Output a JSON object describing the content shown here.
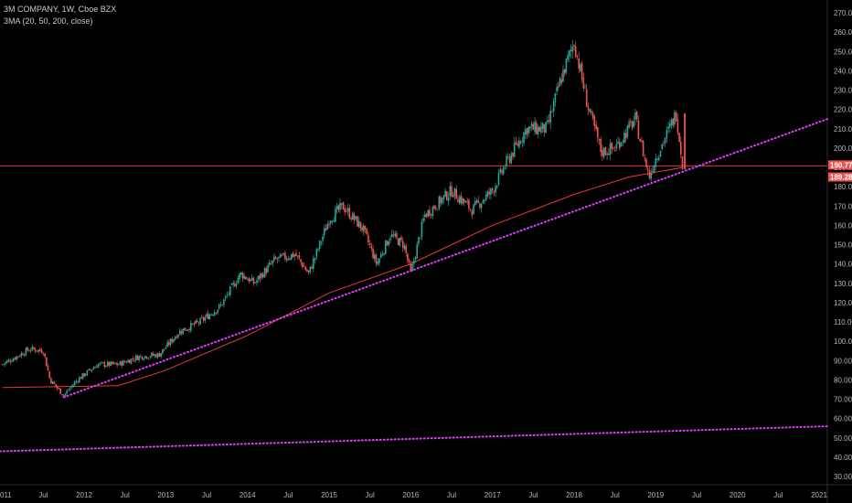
{
  "legend": {
    "title": "3M COMPANY, 1W, Cboe BZX",
    "indicator": "3MA (20, 50, 200, close)"
  },
  "price_tags": {
    "level": "190.77",
    "last": "189.28",
    "level_color": "#ef5350",
    "last_color": "#ef5350"
  },
  "colors": {
    "up": "#26a69a",
    "down": "#ef5350",
    "ma200": "#e53935",
    "trendline": "#e040fb",
    "hline": "#e53935",
    "axis_text": "#b2b5be"
  },
  "chart_data": {
    "type": "candlestick",
    "title": "3M COMPANY, 1W, Cboe BZX",
    "xlabel": "",
    "ylabel": "",
    "ylim": [
      25,
      275
    ],
    "x_tick_labels": [
      "011",
      "Jul",
      "2012",
      "Jul",
      "2013",
      "Jul",
      "2014",
      "Jul",
      "2015",
      "Jul",
      "2016",
      "Jul",
      "2017",
      "Jul",
      "2018",
      "Jul",
      "2019",
      "Jul",
      "2020",
      "Jul",
      "2021"
    ],
    "y_tick_labels": [
      "270.00",
      "260.00",
      "250.00",
      "240.00",
      "230.00",
      "220.00",
      "210.00",
      "200.00",
      "190.00",
      "180.00",
      "170.00",
      "160.00",
      "150.00",
      "140.00",
      "130.00",
      "120.00",
      "110.00",
      "100.00",
      "90.00",
      "80.00",
      "70.00",
      "60.00",
      "50.00",
      "40.00",
      "30.00"
    ],
    "price_path": [
      [
        "2011-01",
        88
      ],
      [
        "2011-03",
        92
      ],
      [
        "2011-05",
        96
      ],
      [
        "2011-07",
        95
      ],
      [
        "2011-08",
        80
      ],
      [
        "2011-10",
        72
      ],
      [
        "2011-12",
        80
      ],
      [
        "2012-03",
        88
      ],
      [
        "2012-06",
        88
      ],
      [
        "2012-09",
        92
      ],
      [
        "2012-12",
        93
      ],
      [
        "2013-03",
        105
      ],
      [
        "2013-06",
        110
      ],
      [
        "2013-09",
        118
      ],
      [
        "2013-12",
        135
      ],
      [
        "2014-02",
        130
      ],
      [
        "2014-05",
        142
      ],
      [
        "2014-08",
        145
      ],
      [
        "2014-10",
        135
      ],
      [
        "2015-01",
        163
      ],
      [
        "2015-03",
        170
      ],
      [
        "2015-06",
        158
      ],
      [
        "2015-08",
        140
      ],
      [
        "2015-10",
        155
      ],
      [
        "2015-12",
        150
      ],
      [
        "2016-01",
        135
      ],
      [
        "2016-03",
        165
      ],
      [
        "2016-07",
        178
      ],
      [
        "2016-10",
        168
      ],
      [
        "2017-01",
        178
      ],
      [
        "2017-03",
        192
      ],
      [
        "2017-06",
        210
      ],
      [
        "2017-09",
        210
      ],
      [
        "2017-11",
        235
      ],
      [
        "2018-01",
        255
      ],
      [
        "2018-03",
        222
      ],
      [
        "2018-05",
        198
      ],
      [
        "2018-07",
        200
      ],
      [
        "2018-10",
        215
      ],
      [
        "2018-12",
        185
      ],
      [
        "2019-01",
        195
      ],
      [
        "2019-03",
        210
      ],
      [
        "2019-04",
        218
      ],
      [
        "2019-05",
        190
      ]
    ],
    "series": [
      {
        "name": "3MA 200",
        "type": "line",
        "points": [
          [
            "2011-01",
            76
          ],
          [
            "2012-06",
            77
          ],
          [
            "2013-01",
            85
          ],
          [
            "2014-01",
            103
          ],
          [
            "2015-01",
            125
          ],
          [
            "2016-01",
            140
          ],
          [
            "2017-01",
            160
          ],
          [
            "2018-01",
            176
          ],
          [
            "2018-09",
            185
          ],
          [
            "2019-05",
            190
          ]
        ]
      }
    ],
    "annotations": [
      {
        "type": "trendline",
        "from": [
          "2011-10",
          71
        ],
        "to": [
          "2021-01",
          215
        ]
      },
      {
        "type": "trendline",
        "from": [
          "2011-01",
          43
        ],
        "to": [
          "2021-01",
          56
        ]
      },
      {
        "type": "horizontal_line",
        "value": 190.77
      }
    ],
    "grid": false,
    "legend_position": "top-left"
  }
}
